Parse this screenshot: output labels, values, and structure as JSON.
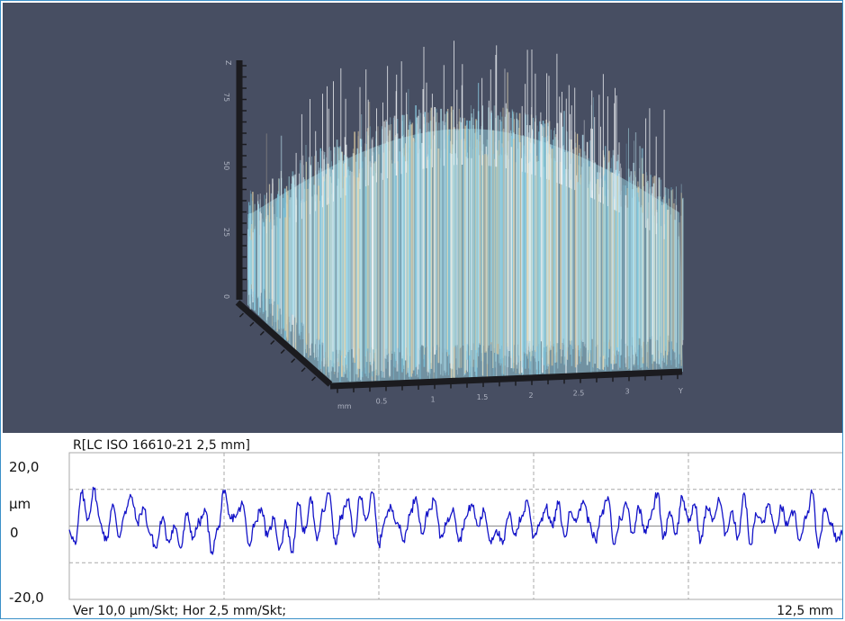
{
  "surface3d": {
    "type": "3d-surface",
    "x_unit": "mm",
    "x_ticks": [
      "0.5",
      "1",
      "1.5",
      "2",
      "2.5",
      "3"
    ],
    "x_end_label": "Y",
    "z_ticks": [
      "0",
      "25",
      "50",
      "75"
    ],
    "z_end_label": "Z",
    "background": "#474e62"
  },
  "chart_data": {
    "type": "line",
    "title": "R[LC ISO 16610-21 2,5 mm]",
    "y_top_label": "20,0",
    "y_bottom_label": "-20,0",
    "y_unit": "µm",
    "y_zero_label": "0",
    "footer_scale": "Ver 10,0 µm/Skt; Hor 2,5 mm/Skt;",
    "x_total_label": "12,5 mm",
    "ylim": [
      -20,
      20
    ],
    "xlim": [
      0,
      12.5
    ],
    "grid": true,
    "line_color": "#1414c8",
    "series": [
      {
        "x": [
          0,
          0.1,
          0.2,
          0.3,
          0.4,
          0.5,
          0.6,
          0.7,
          0.8,
          0.9,
          1.0,
          1.1,
          1.2,
          1.3,
          1.4,
          1.5,
          1.6,
          1.7,
          1.8,
          1.9,
          2.0,
          2.1,
          2.2,
          2.3,
          2.4,
          2.5,
          2.6,
          2.7,
          2.8,
          2.9,
          3.0,
          3.1,
          3.2,
          3.3,
          3.4,
          3.5,
          3.6,
          3.7,
          3.8,
          3.9,
          4.0,
          4.1,
          4.2,
          4.3,
          4.4,
          4.5,
          4.6,
          4.7,
          4.8,
          4.9,
          5.0,
          5.1,
          5.2,
          5.3,
          5.4,
          5.5,
          5.6,
          5.7,
          5.8,
          5.9,
          6.0,
          6.1,
          6.2,
          6.3,
          6.4,
          6.5,
          6.6,
          6.7,
          6.8,
          6.9,
          7.0,
          7.1,
          7.2,
          7.3,
          7.4,
          7.5,
          7.6,
          7.7,
          7.8,
          7.9,
          8.0,
          8.1,
          8.2,
          8.3,
          8.4,
          8.5,
          8.6,
          8.7,
          8.8,
          8.9,
          9.0,
          9.1,
          9.2,
          9.3,
          9.4,
          9.5,
          9.6,
          9.7,
          9.8,
          9.9,
          10.0,
          10.1,
          10.2,
          10.3,
          10.4,
          10.5,
          10.6,
          10.7,
          10.8,
          10.9,
          11.0,
          11.1,
          11.2,
          11.3,
          11.4,
          11.5,
          11.6,
          11.7,
          11.8,
          11.9,
          12.0,
          12.1,
          12.2,
          12.3,
          12.4,
          12.5
        ],
        "y": [
          -1,
          -5,
          9,
          2,
          10,
          1,
          -4,
          6,
          -3,
          4,
          8,
          1,
          5,
          -2,
          -6,
          2,
          -4,
          0,
          -6,
          3,
          -3,
          1,
          4,
          -7,
          -1,
          9,
          2,
          3,
          6,
          -5,
          1,
          5,
          -3,
          2,
          -6,
          1,
          -7,
          6,
          -2,
          8,
          -4,
          4,
          9,
          -5,
          3,
          7,
          -3,
          8,
          2,
          9,
          -5,
          2,
          5,
          1,
          -4,
          3,
          8,
          -2,
          4,
          7,
          -3,
          1,
          5,
          -4,
          2,
          6,
          0,
          4,
          -4,
          -1,
          -5,
          3,
          -2,
          2,
          7,
          -3,
          1,
          5,
          0,
          6,
          -3,
          4,
          2,
          7,
          1,
          -4,
          3,
          8,
          -5,
          2,
          6,
          -2,
          5,
          -1,
          3,
          9,
          -3,
          4,
          -2,
          8,
          1,
          6,
          -4,
          5,
          2,
          7,
          -2,
          4,
          -3,
          9,
          -5,
          3,
          1,
          6,
          -2,
          5,
          0,
          4,
          -4,
          2,
          9,
          -6,
          4,
          1,
          -4,
          -1
        ]
      }
    ]
  }
}
